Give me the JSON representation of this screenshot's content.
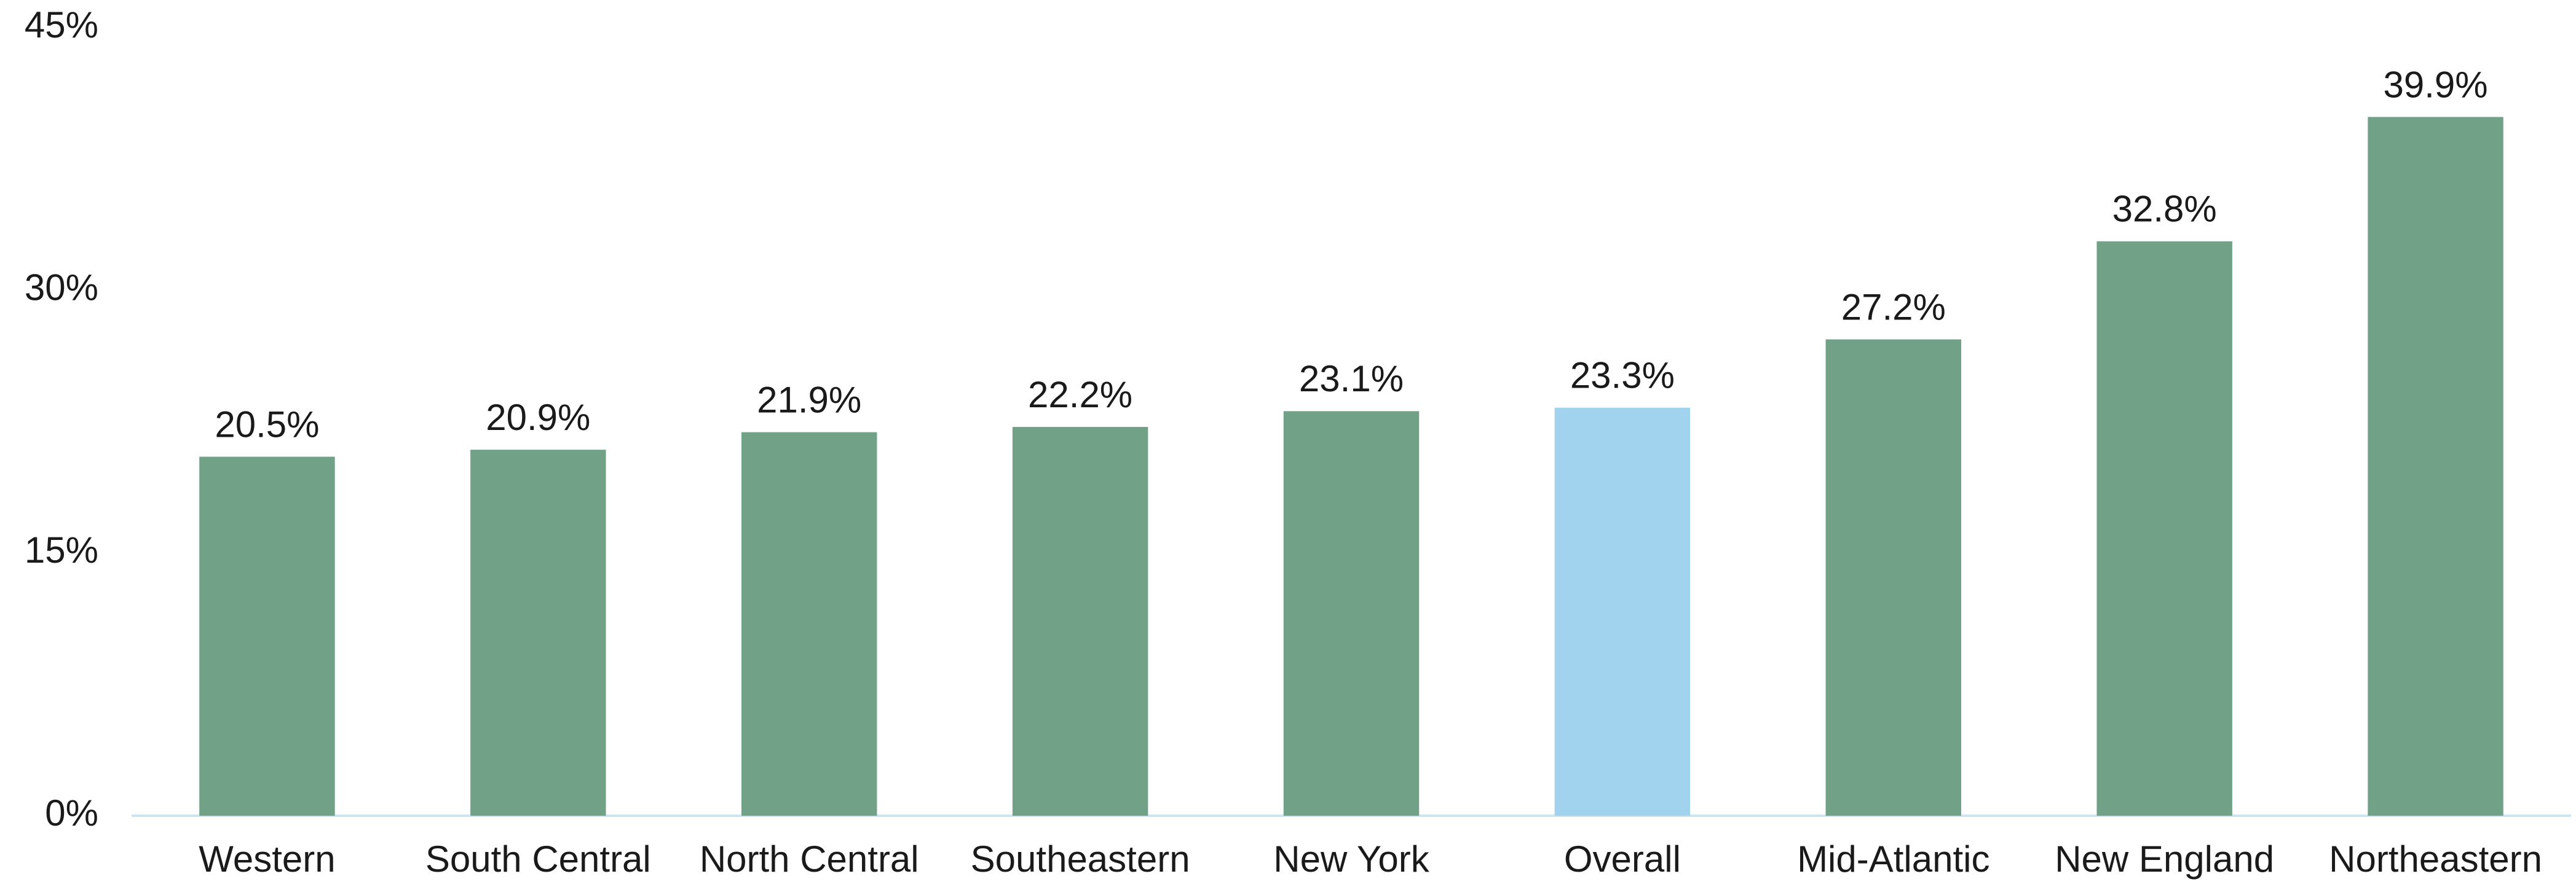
{
  "chart_data": {
    "type": "bar",
    "categories": [
      "Western",
      "South Central",
      "North Central",
      "Southeastern",
      "New York",
      "Overall",
      "Mid-Atlantic",
      "New England",
      "Northeastern"
    ],
    "values": [
      20.5,
      20.9,
      21.9,
      22.2,
      23.1,
      23.3,
      27.2,
      32.8,
      39.9
    ],
    "value_labels": [
      "20.5%",
      "20.9%",
      "21.9%",
      "22.2%",
      "23.1%",
      "23.3%",
      "27.2%",
      "32.8%",
      "39.9%"
    ],
    "colors": [
      "#71a288",
      "#71a288",
      "#71a288",
      "#71a288",
      "#71a288",
      "#a1d2ee",
      "#71a288",
      "#71a288",
      "#71a288"
    ],
    "ylim": [
      0,
      45
    ],
    "yticks": [
      {
        "value": 0,
        "label": "0%"
      },
      {
        "value": 15,
        "label": "15%"
      },
      {
        "value": 30,
        "label": "30%"
      },
      {
        "value": 45,
        "label": "45%"
      }
    ],
    "grid": false
  }
}
